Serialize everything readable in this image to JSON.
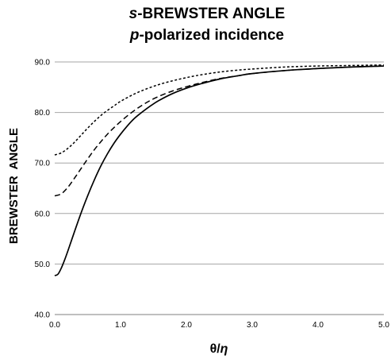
{
  "chart_data": {
    "type": "line",
    "title": {
      "line1_italic": "s",
      "line1_rest": "-BREWSTER ANGLE",
      "line2_italic": "p",
      "line2_rest": "-polarized incidence"
    },
    "xlabel": {
      "prefix": "θ/",
      "italic": "η"
    },
    "ylabel": "BREWSTER  ANGLE",
    "xlim": [
      0,
      5
    ],
    "ylim": [
      40,
      90
    ],
    "xticks": [
      "0.0",
      "1.0",
      "2.0",
      "3.0",
      "4.0",
      "5.0"
    ],
    "yticks": [
      "40.0",
      "50.0",
      "60.0",
      "70.0",
      "80.0",
      "90.0"
    ],
    "grid": "horizontal",
    "legend": "none",
    "series": [
      {
        "style": "solid",
        "x": [
          0,
          0.05,
          0.1,
          0.15,
          0.2,
          0.3,
          0.4,
          0.5,
          0.6,
          0.7,
          0.8,
          0.9,
          1.0,
          1.1,
          1.2,
          1.3,
          1.4,
          1.5,
          1.6,
          1.8,
          2.0,
          2.2,
          2.5,
          2.8,
          3.0,
          3.5,
          4.0,
          4.5,
          5.0
        ],
        "y": [
          47.7,
          48.0,
          49.2,
          50.8,
          52.6,
          56.4,
          60.1,
          63.5,
          66.6,
          69.4,
          71.8,
          73.9,
          75.7,
          77.3,
          78.7,
          79.8,
          80.8,
          81.7,
          82.5,
          83.8,
          84.8,
          85.6,
          86.6,
          87.3,
          87.7,
          88.3,
          88.7,
          89.0,
          89.2
        ]
      },
      {
        "style": "dashed",
        "x": [
          0,
          0.1,
          0.2,
          0.3,
          0.4,
          0.5,
          0.6,
          0.7,
          0.8,
          0.9,
          1.0,
          1.1,
          1.2,
          1.3,
          1.4,
          1.5,
          1.6,
          1.8,
          2.0,
          2.2,
          2.5,
          2.8,
          3.0,
          3.5,
          4.0,
          4.5,
          5.0
        ],
        "y": [
          63.5,
          63.9,
          65.2,
          67.0,
          68.9,
          70.8,
          72.6,
          74.2,
          75.7,
          77.0,
          78.2,
          79.3,
          80.3,
          81.2,
          82.0,
          82.7,
          83.3,
          84.3,
          85.1,
          85.8,
          86.7,
          87.3,
          87.7,
          88.3,
          88.7,
          89.0,
          89.2
        ]
      },
      {
        "style": "dotted",
        "x": [
          0,
          0.1,
          0.2,
          0.3,
          0.4,
          0.5,
          0.6,
          0.7,
          0.8,
          0.9,
          1.0,
          1.2,
          1.4,
          1.6,
          1.8,
          2.0,
          2.2,
          2.5,
          2.8,
          3.0,
          3.5,
          4.0,
          4.5,
          5.0
        ],
        "y": [
          71.6,
          72.0,
          72.9,
          74.1,
          75.5,
          76.9,
          78.2,
          79.4,
          80.4,
          81.3,
          82.2,
          83.6,
          84.7,
          85.6,
          86.3,
          86.9,
          87.4,
          88.0,
          88.4,
          88.6,
          89.0,
          89.2,
          89.3,
          89.4
        ]
      }
    ]
  }
}
